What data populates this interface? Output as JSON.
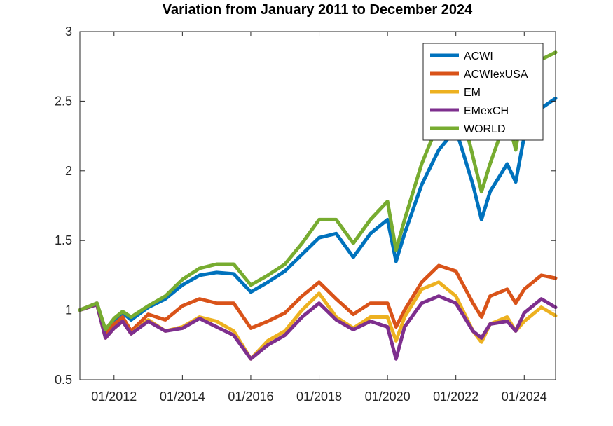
{
  "chart_data": {
    "type": "line",
    "title": "Variation from January 2011 to December 2024",
    "xlabel": "",
    "ylabel": "",
    "xlim": [
      "01/2011",
      "12/2024"
    ],
    "ylim": [
      0.5,
      3
    ],
    "x_ticks": [
      "01/2012",
      "01/2014",
      "01/2016",
      "01/2018",
      "01/2020",
      "01/2022",
      "01/2024"
    ],
    "y_ticks": [
      "0.5",
      "1",
      "1.5",
      "2",
      "2.5",
      "3"
    ],
    "grid": false,
    "legend_position": "top-right",
    "x": [
      "01/2011",
      "07/2011",
      "10/2011",
      "01/2012",
      "04/2012",
      "07/2012",
      "01/2013",
      "07/2013",
      "01/2014",
      "07/2014",
      "01/2015",
      "07/2015",
      "01/2016",
      "07/2016",
      "01/2017",
      "07/2017",
      "01/2018",
      "07/2018",
      "01/2019",
      "07/2019",
      "01/2020",
      "04/2020",
      "07/2020",
      "01/2021",
      "07/2021",
      "01/2022",
      "07/2022",
      "10/2022",
      "01/2023",
      "07/2023",
      "10/2023",
      "01/2024",
      "07/2024",
      "12/2024"
    ],
    "series": [
      {
        "name": "ACWI",
        "color": "#0072BD",
        "values": [
          1.0,
          1.05,
          0.85,
          0.93,
          0.98,
          0.93,
          1.02,
          1.08,
          1.18,
          1.25,
          1.27,
          1.26,
          1.13,
          1.2,
          1.28,
          1.4,
          1.52,
          1.55,
          1.38,
          1.55,
          1.65,
          1.35,
          1.55,
          1.9,
          2.15,
          2.3,
          1.9,
          1.65,
          1.85,
          2.05,
          1.92,
          2.25,
          2.45,
          2.52
        ]
      },
      {
        "name": "ACWIexUSA",
        "color": "#D95319",
        "values": [
          1.0,
          1.05,
          0.83,
          0.9,
          0.95,
          0.85,
          0.97,
          0.93,
          1.03,
          1.08,
          1.05,
          1.05,
          0.87,
          0.92,
          0.98,
          1.1,
          1.2,
          1.08,
          0.97,
          1.05,
          1.05,
          0.88,
          1.0,
          1.2,
          1.32,
          1.28,
          1.05,
          0.95,
          1.1,
          1.15,
          1.05,
          1.15,
          1.25,
          1.23
        ]
      },
      {
        "name": "EM",
        "color": "#EDB120",
        "values": [
          1.0,
          1.04,
          0.8,
          0.87,
          0.92,
          0.83,
          0.93,
          0.85,
          0.88,
          0.95,
          0.92,
          0.85,
          0.65,
          0.78,
          0.85,
          1.0,
          1.12,
          0.95,
          0.87,
          0.95,
          0.95,
          0.78,
          0.95,
          1.15,
          1.2,
          1.1,
          0.85,
          0.77,
          0.9,
          0.95,
          0.85,
          0.92,
          1.02,
          0.96
        ]
      },
      {
        "name": "EMexCH",
        "color": "#7E2F8E",
        "values": [
          1.0,
          1.04,
          0.8,
          0.87,
          0.92,
          0.83,
          0.92,
          0.85,
          0.87,
          0.94,
          0.88,
          0.82,
          0.65,
          0.75,
          0.82,
          0.95,
          1.05,
          0.93,
          0.86,
          0.92,
          0.88,
          0.65,
          0.88,
          1.05,
          1.1,
          1.05,
          0.85,
          0.8,
          0.9,
          0.92,
          0.85,
          0.98,
          1.08,
          1.02
        ]
      },
      {
        "name": "WORLD",
        "color": "#77AC30",
        "values": [
          1.0,
          1.05,
          0.86,
          0.94,
          0.99,
          0.95,
          1.03,
          1.1,
          1.22,
          1.3,
          1.33,
          1.33,
          1.18,
          1.25,
          1.33,
          1.48,
          1.65,
          1.65,
          1.48,
          1.65,
          1.78,
          1.43,
          1.65,
          2.05,
          2.35,
          2.6,
          2.1,
          1.85,
          2.05,
          2.4,
          2.15,
          2.55,
          2.8,
          2.85
        ]
      }
    ]
  }
}
